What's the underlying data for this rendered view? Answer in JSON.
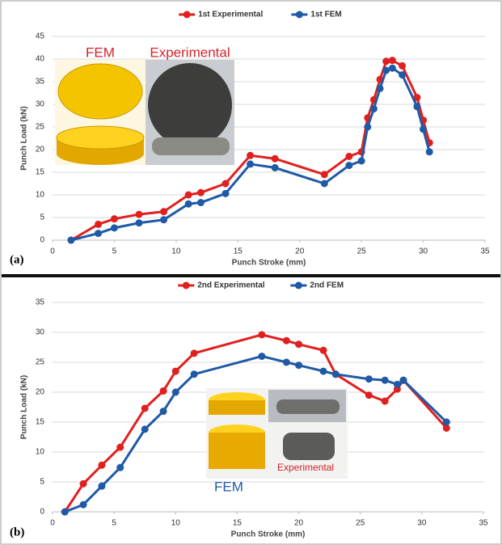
{
  "chart_data": [
    {
      "type": "line",
      "panel_label": "(a)",
      "xlabel": "Punch Stroke (mm)",
      "ylabel": "Punch Load (kN)",
      "xlim": [
        0,
        35
      ],
      "xticks": [
        0,
        5,
        10,
        15,
        20,
        25,
        30,
        35
      ],
      "ylim": [
        0,
        45
      ],
      "yticks": [
        0,
        5,
        10,
        15,
        20,
        25,
        30,
        35,
        40,
        45
      ],
      "grid": true,
      "legend": "top",
      "annotations": [
        "FEM",
        "Experimental"
      ],
      "series": [
        {
          "name": "1st Experimental",
          "color": "#e0201f",
          "x": [
            1.5,
            3.7,
            5,
            7,
            9,
            11,
            12,
            14,
            16,
            18,
            22,
            24,
            25,
            25.5,
            26,
            26.5,
            27,
            27.5,
            28.3,
            29.5,
            30,
            30.5
          ],
          "values": [
            0,
            3.5,
            4.7,
            5.7,
            6.3,
            10,
            10.5,
            12.5,
            18.7,
            18,
            14.5,
            18.5,
            19.5,
            27,
            31,
            35.5,
            39.5,
            39.7,
            38.5,
            31.5,
            26.5,
            21.5
          ]
        },
        {
          "name": "1st FEM",
          "color": "#1f5aa6",
          "x": [
            1.5,
            3.7,
            5,
            7,
            9,
            11,
            12,
            14,
            16,
            18,
            22,
            24,
            25,
            25.5,
            26,
            26.5,
            27,
            27.5,
            28.3,
            29.5,
            30,
            30.5
          ],
          "values": [
            0,
            1.5,
            2.7,
            3.8,
            4.5,
            8,
            8.3,
            10.3,
            16.8,
            16,
            12.5,
            16.5,
            17.5,
            25,
            29,
            33.5,
            37.5,
            38,
            36.5,
            29.5,
            24.5,
            19.5
          ]
        }
      ]
    },
    {
      "type": "line",
      "panel_label": "(b)",
      "xlabel": "Punch Stroke (mm)",
      "ylabel": "Punch Load (kN)",
      "xlim": [
        0,
        35
      ],
      "xticks": [
        0,
        5,
        10,
        15,
        20,
        25,
        30,
        35
      ],
      "ylim": [
        0,
        35
      ],
      "yticks": [
        0,
        5,
        10,
        15,
        20,
        25,
        30,
        35
      ],
      "grid": true,
      "legend": "top",
      "annotations": [
        "FEM",
        "Experimental"
      ],
      "series": [
        {
          "name": "2nd Experimental",
          "color": "#e0201f",
          "x": [
            1,
            2.5,
            4,
            5.5,
            7.5,
            9,
            10,
            11.5,
            17,
            19,
            20,
            22,
            23,
            25.7,
            27,
            28,
            28.5,
            32
          ],
          "values": [
            0,
            4.7,
            7.8,
            10.8,
            17.3,
            20.2,
            23.5,
            26.5,
            29.6,
            28.6,
            28,
            27,
            23,
            19.5,
            18.5,
            20.5,
            22,
            14
          ]
        },
        {
          "name": "2nd FEM",
          "color": "#1f5aa6",
          "x": [
            1,
            2.5,
            4,
            5.5,
            7.5,
            9,
            10,
            11.5,
            17,
            19,
            20,
            22,
            23,
            25.7,
            27,
            28,
            28.5,
            32
          ],
          "values": [
            0,
            1.2,
            4.3,
            7.4,
            13.8,
            16.8,
            20,
            23,
            26,
            25,
            24.5,
            23.5,
            23,
            22.2,
            22,
            21.3,
            22,
            15
          ]
        }
      ]
    }
  ]
}
